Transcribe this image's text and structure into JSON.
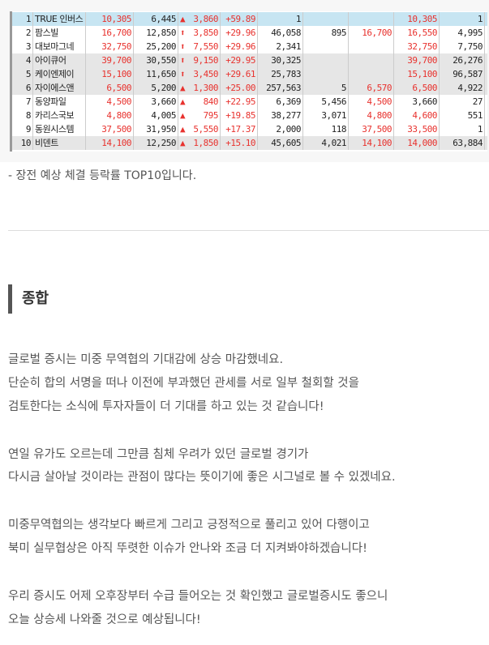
{
  "table": {
    "rows": [
      {
        "no": "1",
        "name": "TRUE 인버스",
        "price": "10,305",
        "prev": "6,445",
        "arrow": "triangle-up-icon",
        "change": "3,860",
        "pct": "+59.89",
        "vol": "1",
        "c7": "",
        "c8": "",
        "c9": "10,305",
        "c10": "1",
        "c9red": true,
        "bg": "#c7e5f2"
      },
      {
        "no": "2",
        "name": "팜스빌",
        "price": "16,700",
        "prev": "12,850",
        "arrow": "arrow-up-icon",
        "change": "3,850",
        "pct": "+29.96",
        "vol": "46,058",
        "c7": "895",
        "c8": "16,700",
        "c9": "16,550",
        "c10": "4,995",
        "c9red": true,
        "bg": "#ffffff"
      },
      {
        "no": "3",
        "name": "대보마그네",
        "price": "32,750",
        "prev": "25,200",
        "arrow": "arrow-up-icon",
        "change": "7,550",
        "pct": "+29.96",
        "vol": "2,341",
        "c7": "",
        "c8": "",
        "c9": "32,750",
        "c10": "7,750",
        "c9red": true,
        "bg": "#ffffff"
      },
      {
        "no": "4",
        "name": "아이큐어",
        "price": "39,700",
        "prev": "30,550",
        "arrow": "arrow-up-icon",
        "change": "9,150",
        "pct": "+29.95",
        "vol": "30,325",
        "c7": "",
        "c8": "",
        "c9": "39,700",
        "c10": "26,276",
        "c9red": true,
        "bg": "#e6e6e6"
      },
      {
        "no": "5",
        "name": "케이엔제이",
        "price": "15,100",
        "prev": "11,650",
        "arrow": "arrow-up-icon",
        "change": "3,450",
        "pct": "+29.61",
        "vol": "25,783",
        "c7": "",
        "c8": "",
        "c9": "15,100",
        "c10": "96,587",
        "c9red": true,
        "bg": "#e6e6e6"
      },
      {
        "no": "6",
        "name": "자이에스앤",
        "price": "6,500",
        "prev": "5,200",
        "arrow": "triangle-up-icon",
        "change": "1,300",
        "pct": "+25.00",
        "vol": "257,563",
        "c7": "5",
        "c8": "6,570",
        "c9": "6,500",
        "c10": "4,922",
        "c9red": true,
        "bg": "#e6e6e6"
      },
      {
        "no": "7",
        "name": "동양파일",
        "price": "4,500",
        "prev": "3,660",
        "arrow": "triangle-up-icon",
        "change": "840",
        "pct": "+22.95",
        "vol": "6,369",
        "c7": "5,456",
        "c8": "4,500",
        "c9": "3,660",
        "c10": "27",
        "c9red": false,
        "bg": "#ffffff"
      },
      {
        "no": "8",
        "name": "카리스국보",
        "price": "4,800",
        "prev": "4,005",
        "arrow": "triangle-up-icon",
        "change": "795",
        "pct": "+19.85",
        "vol": "38,277",
        "c7": "3,071",
        "c8": "4,800",
        "c9": "4,600",
        "c10": "551",
        "c9red": true,
        "bg": "#ffffff"
      },
      {
        "no": "9",
        "name": "동원시스템",
        "price": "37,500",
        "prev": "31,950",
        "arrow": "triangle-up-icon",
        "change": "5,550",
        "pct": "+17.37",
        "vol": "2,000",
        "c7": "118",
        "c8": "37,500",
        "c9": "33,500",
        "c10": "1",
        "c9red": true,
        "bg": "#ffffff"
      },
      {
        "no": "10",
        "name": "비덴트",
        "price": "14,100",
        "prev": "12,250",
        "arrow": "triangle-up-icon",
        "change": "1,850",
        "pct": "+15.10",
        "vol": "45,605",
        "c7": "4,021",
        "c8": "14,100",
        "c9": "14,000",
        "c10": "63,884",
        "c9red": true,
        "bg": "#e6e6e6"
      }
    ]
  },
  "note": "- 장전 예상 체결 등락률 TOP10입니다.",
  "heading": "종합",
  "paragraphs": [
    "글로벌 증시는 미중 무역협의 기대감에 상승 마감했네요.",
    "단순히 합의 서명을 떠나 이전에 부과했던 관세를 서로 일부 철회할 것을",
    "검토한다는 소식에 투자자들이 더 기대를 하고 있는 것 같습니다!",
    "연일 유가도 오르는데 그만큼 침체 우려가 있던 글로벌 경기가",
    "다시금 살아날 것이라는 관점이 많다는 뜻이기에 좋은 시그널로 볼 수 있겠네요.",
    "미중무역협의는 생각보다 빠르게 그리고 긍정적으로 풀리고 있어 다행이고",
    "북미 실무협상은 아직 뚜렷한 이슈가 안나와 조금 더 지켜봐야하겠습니다!",
    "우리 증시도 어제 오후장부터 수급 들어오는 것 확인했고 글로벌증시도 좋으니",
    "오늘 상승세 나와줄 것으로 예상됩니다!"
  ],
  "colors": {
    "up": "#e8322e",
    "highlight": "#c7e5f2"
  }
}
